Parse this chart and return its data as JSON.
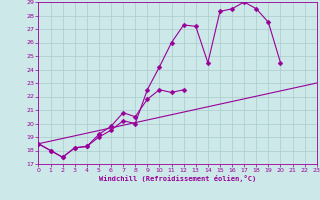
{
  "xlabel": "Windchill (Refroidissement éolien,°C)",
  "bg_color": "#cce8e8",
  "grid_color": "#aacccc",
  "line_color": "#990099",
  "xlim": [
    0,
    23
  ],
  "ylim": [
    17,
    29
  ],
  "xticks": [
    0,
    1,
    2,
    3,
    4,
    5,
    6,
    7,
    8,
    9,
    10,
    11,
    12,
    13,
    14,
    15,
    16,
    17,
    18,
    19,
    20,
    21,
    22,
    23
  ],
  "yticks": [
    17,
    18,
    19,
    20,
    21,
    22,
    23,
    24,
    25,
    26,
    27,
    28,
    29
  ],
  "series": [
    {
      "x": [
        0,
        1,
        2,
        3,
        4,
        5,
        6,
        7,
        8,
        9,
        10,
        11,
        12,
        13,
        14,
        15,
        16,
        17,
        18,
        19,
        20
      ],
      "y": [
        18.5,
        18.0,
        17.5,
        18.2,
        18.3,
        19.0,
        19.5,
        20.2,
        20.0,
        22.5,
        24.2,
        26.0,
        27.3,
        27.2,
        24.5,
        28.3,
        28.5,
        29.0,
        28.5,
        27.5,
        24.5
      ]
    },
    {
      "x": [
        0,
        1,
        2,
        3,
        4,
        5,
        6,
        7,
        8,
        9,
        10,
        11,
        12
      ],
      "y": [
        18.5,
        18.0,
        17.5,
        18.2,
        18.3,
        19.2,
        19.8,
        20.8,
        20.5,
        21.8,
        22.5,
        22.3,
        22.5
      ]
    },
    {
      "x": [
        0,
        23
      ],
      "y": [
        18.5,
        23.0
      ]
    }
  ]
}
